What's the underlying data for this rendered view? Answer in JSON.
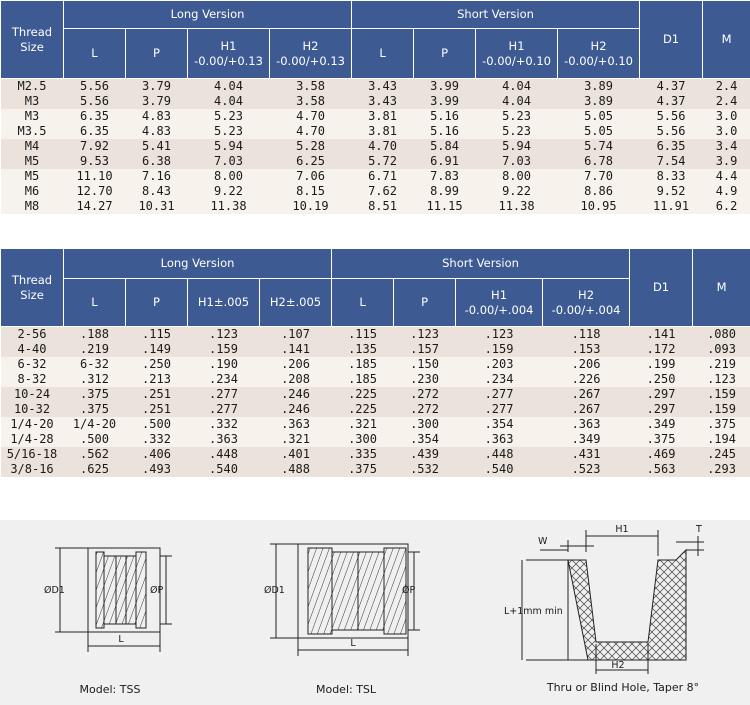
{
  "metric": {
    "headers": {
      "thread_size": "Thread Size",
      "long_version": "Long Version",
      "short_version": "Short Version",
      "d1": "D1",
      "m": "M",
      "cols": [
        "L",
        "P",
        "H1\n-0.00/+0.13",
        "H2\n-0.00/+0.13",
        "L",
        "P",
        "H1\n-0.00/+0.10",
        "H2\n-0.00/+0.10"
      ]
    },
    "groups": [
      [
        [
          "M2.5",
          "5.56",
          "3.79",
          "4.04",
          "3.58",
          "3.43",
          "3.99",
          "4.04",
          "3.89",
          "4.37",
          "2.4"
        ],
        [
          "M3",
          "5.56",
          "3.79",
          "4.04",
          "3.58",
          "3.43",
          "3.99",
          "4.04",
          "3.89",
          "4.37",
          "2.4"
        ]
      ],
      [
        [
          "M3",
          "6.35",
          "4.83",
          "5.23",
          "4.70",
          "3.81",
          "5.16",
          "5.23",
          "5.05",
          "5.56",
          "3.0"
        ],
        [
          "M3.5",
          "6.35",
          "4.83",
          "5.23",
          "4.70",
          "3.81",
          "5.16",
          "5.23",
          "5.05",
          "5.56",
          "3.0"
        ]
      ],
      [
        [
          "M4",
          "7.92",
          "5.41",
          "5.94",
          "5.28",
          "4.70",
          "5.84",
          "5.94",
          "5.74",
          "6.35",
          "3.4"
        ],
        [
          "M5",
          "9.53",
          "6.38",
          "7.03",
          "6.25",
          "5.72",
          "6.91",
          "7.03",
          "6.78",
          "7.54",
          "3.9"
        ]
      ],
      [
        [
          "M5",
          "11.10",
          "7.16",
          "8.00",
          "7.06",
          "6.71",
          "7.83",
          "8.00",
          "7.70",
          "8.33",
          "4.4"
        ],
        [
          "M6",
          "12.70",
          "8.43",
          "9.22",
          "8.15",
          "7.62",
          "8.99",
          "9.22",
          "8.86",
          "9.52",
          "4.9"
        ],
        [
          "M8",
          "14.27",
          "10.31",
          "11.38",
          "10.19",
          "8.51",
          "11.15",
          "11.38",
          "10.95",
          "11.91",
          "6.2"
        ]
      ]
    ]
  },
  "imperial": {
    "headers": {
      "thread_size": "Thread Size",
      "long_version": "Long Version",
      "short_version": "Short Version",
      "d1": "D1",
      "m": "M",
      "cols": [
        "L",
        "P",
        "H1±.005",
        "H2±.005",
        "L",
        "P",
        "H1\n-0.00/+.004",
        "H2\n-0.00/+.004"
      ]
    },
    "groups": [
      [
        [
          "2-56",
          ".188",
          ".115",
          ".123",
          ".107",
          ".115",
          ".123",
          ".123",
          ".118",
          ".141",
          ".080"
        ],
        [
          "4-40",
          ".219",
          ".149",
          ".159",
          ".141",
          ".135",
          ".157",
          ".159",
          ".153",
          ".172",
          ".093"
        ]
      ],
      [
        [
          "6-32",
          "6-32",
          ".250",
          ".190",
          ".206",
          ".185",
          ".150",
          ".203",
          ".206",
          ".199",
          ".219"
        ],
        [
          "8-32",
          ".312",
          ".213",
          ".234",
          ".208",
          ".185",
          ".230",
          ".234",
          ".226",
          ".250",
          ".123"
        ]
      ],
      [
        [
          "10-24",
          ".375",
          ".251",
          ".277",
          ".246",
          ".225",
          ".272",
          ".277",
          ".267",
          ".297",
          ".159"
        ],
        [
          "10-32",
          ".375",
          ".251",
          ".277",
          ".246",
          ".225",
          ".272",
          ".277",
          ".267",
          ".297",
          ".159"
        ]
      ],
      [
        [
          "1/4-20",
          "1/4-20",
          ".500",
          ".332",
          ".363",
          ".321",
          ".300",
          ".354",
          ".363",
          ".349",
          ".375"
        ],
        [
          "1/4-28",
          ".500",
          ".332",
          ".363",
          ".321",
          ".300",
          ".354",
          ".363",
          ".349",
          ".375",
          ".194"
        ]
      ],
      [
        [
          "5/16-18",
          ".562",
          ".406",
          ".448",
          ".401",
          ".335",
          ".439",
          ".448",
          ".431",
          ".469",
          ".245"
        ],
        [
          "3/8-16",
          ".625",
          ".493",
          ".540",
          ".488",
          ".375",
          ".532",
          ".540",
          ".523",
          ".563",
          ".293"
        ]
      ]
    ]
  },
  "drawings": {
    "tss": {
      "caption": "Model: TSS",
      "d1": "ØD1",
      "p": "ØP",
      "l": "L"
    },
    "tsl": {
      "caption": "Model: TSL",
      "d1": "ØD1",
      "p": "ØP",
      "l": "L"
    },
    "hole": {
      "caption": "Thru or Blind Hole, Taper 8°",
      "w": "W",
      "h1": "H1",
      "t": "T",
      "l": "L+1mm min",
      "h2": "H2"
    }
  },
  "colors": {
    "header_bg": "#3d5a93",
    "band_a": "#ebe3db",
    "band_b": "#f8f2ec",
    "drawing_bg": "#f0f0f0"
  }
}
